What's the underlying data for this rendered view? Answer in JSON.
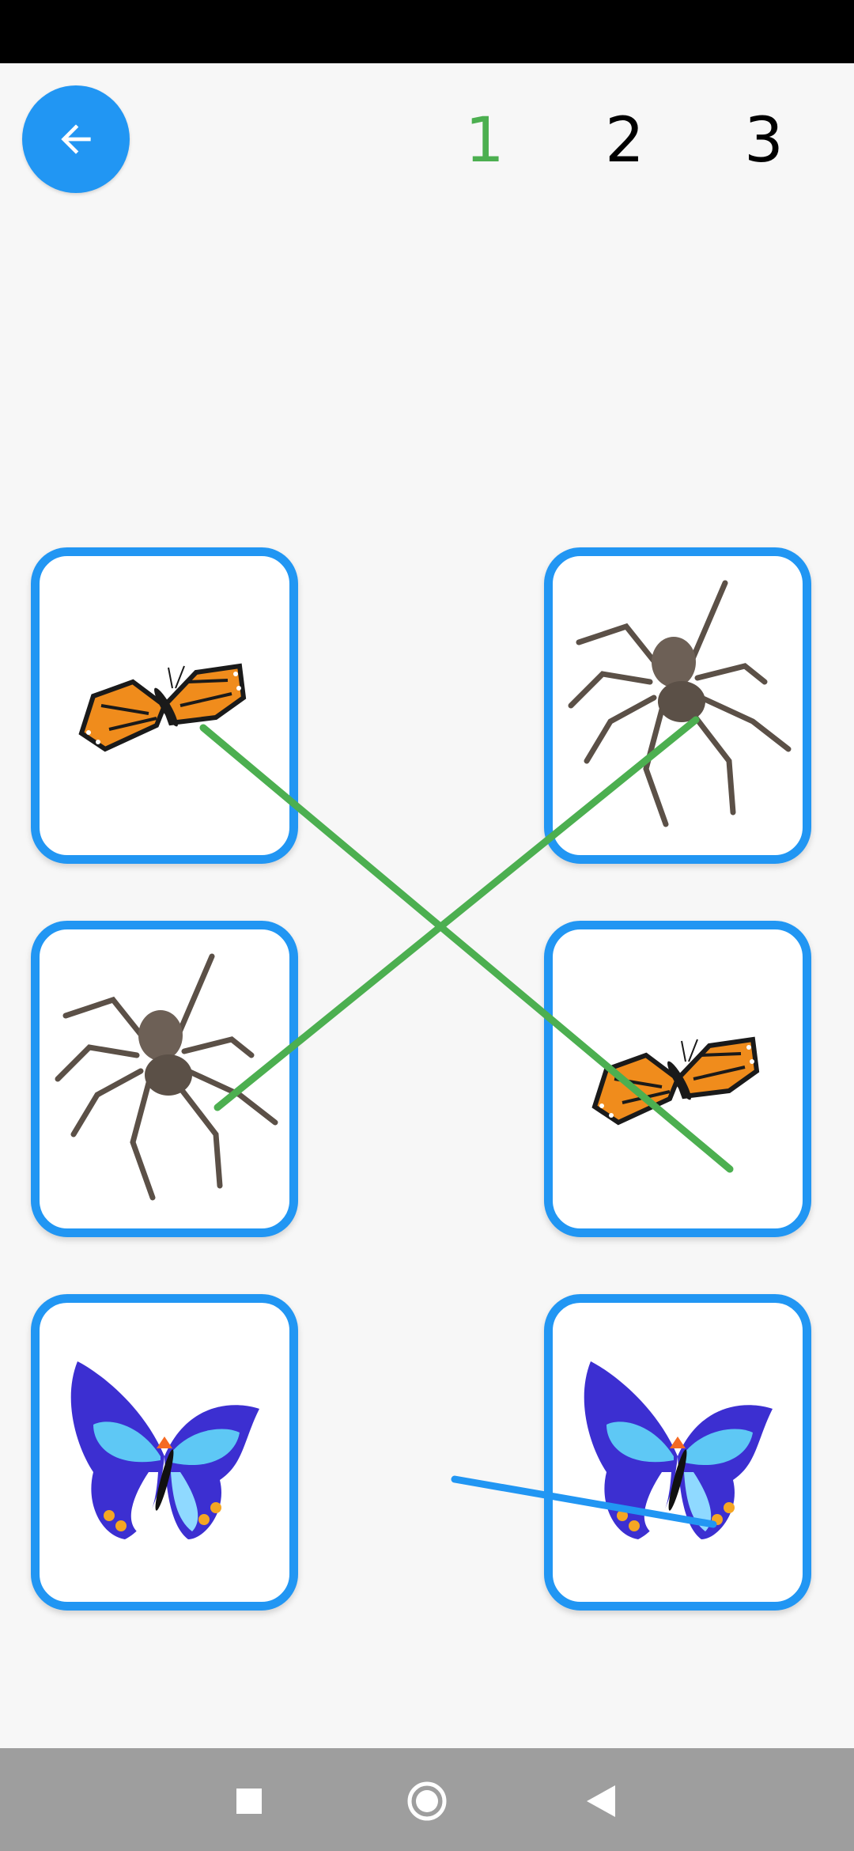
{
  "header": {
    "levels": [
      "1",
      "2",
      "3"
    ],
    "active_level": "1"
  },
  "colors": {
    "accent": "#2196f3",
    "correct_line": "#4caf50",
    "active_level": "#4caf50",
    "inactive_level": "#000000"
  },
  "cards": {
    "left": [
      "monarch-butterfly",
      "spider",
      "blue-butterfly"
    ],
    "right": [
      "spider",
      "monarch-butterfly",
      "blue-butterfly"
    ]
  },
  "connections": [
    {
      "from": "left-1",
      "to": "right-2",
      "status": "correct"
    },
    {
      "from": "left-2",
      "to": "right-1",
      "status": "correct"
    },
    {
      "from": "left-3",
      "to": "right-3",
      "status": "in-progress"
    }
  ],
  "icons": {
    "back": "arrow-left-icon",
    "nav": [
      "square-icon",
      "circle-icon",
      "triangle-back-icon"
    ]
  }
}
